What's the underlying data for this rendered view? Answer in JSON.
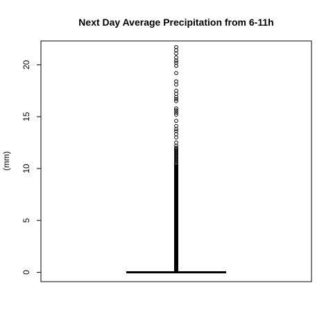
{
  "chart_data": {
    "type": "boxplot",
    "title": "Next Day Average Precipitation from 6-11h",
    "xlabel": "",
    "ylabel": "(mm)",
    "ylim": [
      -0.9,
      22.3
    ],
    "yticks": [
      0,
      5,
      10,
      15,
      20
    ],
    "grid": false,
    "legend": "none",
    "box": {
      "min": 0,
      "q1": 0,
      "median": 0,
      "q3": 0,
      "whisker_low": 0,
      "whisker_high": 0
    },
    "outliers": [
      0.3,
      0.6,
      0.9,
      1.2,
      1.5,
      1.8,
      2.1,
      2.4,
      2.7,
      3.0,
      3.3,
      3.6,
      3.9,
      4.2,
      4.5,
      4.8,
      5.1,
      5.4,
      5.7,
      6.0,
      6.3,
      6.6,
      6.9,
      7.2,
      7.5,
      7.8,
      8.1,
      8.4,
      8.7,
      9.0,
      9.3,
      9.6,
      9.9,
      10.2,
      10.4,
      10.5,
      10.6,
      10.7,
      10.8,
      10.9,
      11.0,
      11.1,
      11.2,
      11.3,
      11.4,
      11.5,
      11.6,
      11.7,
      11.8,
      11.9,
      12.0,
      12.2,
      12.5,
      13.0,
      13.3,
      13.6,
      13.8,
      14.1,
      14.6,
      15.2,
      15.4,
      15.6,
      15.8,
      16.5,
      16.7,
      16.9,
      17.2,
      17.5,
      18.1,
      18.4,
      19.2,
      19.9,
      20.2,
      20.4,
      20.7,
      21.1,
      21.4,
      21.7
    ]
  }
}
